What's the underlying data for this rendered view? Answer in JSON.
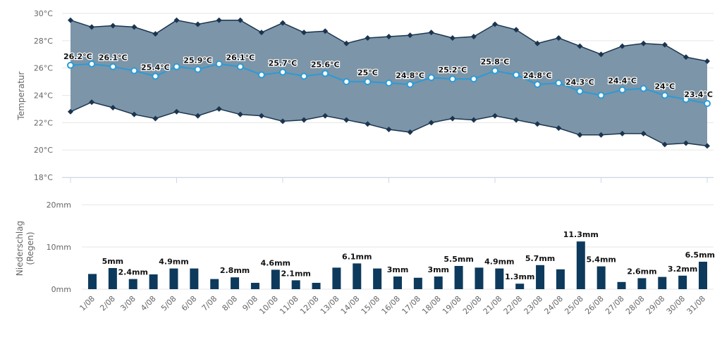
{
  "chart_data": [
    {
      "type": "area",
      "ylabel": "Temperatur",
      "unit": "°C",
      "ylim": [
        18,
        30
      ],
      "yticks": [
        "18°C",
        "20°C",
        "22°C",
        "24°C",
        "26°C",
        "28°C",
        "30°C"
      ],
      "grid": true,
      "categories": [
        "1/08",
        "2/08",
        "3/08",
        "4/08",
        "5/08",
        "6/08",
        "7/08",
        "8/08",
        "9/08",
        "10/08",
        "11/08",
        "12/08",
        "13/08",
        "14/08",
        "15/08",
        "16/08",
        "17/08",
        "18/08",
        "19/08",
        "20/08",
        "21/08",
        "22/08",
        "23/08",
        "24/08",
        "25/08",
        "26/08",
        "27/08",
        "28/08",
        "29/08",
        "30/08",
        "31/08"
      ],
      "series": [
        {
          "role": "max",
          "color": "#1b3550",
          "values": [
            29.5,
            29.0,
            29.1,
            29.0,
            28.5,
            29.5,
            29.2,
            29.5,
            29.5,
            28.6,
            29.3,
            28.6,
            28.7,
            27.8,
            28.2,
            28.3,
            28.4,
            28.6,
            28.2,
            28.3,
            29.2,
            28.8,
            27.8,
            28.2,
            27.6,
            27.0,
            27.6,
            27.8,
            27.7,
            26.8,
            26.5
          ]
        },
        {
          "role": "min",
          "color": "#1b3550",
          "values": [
            22.8,
            23.5,
            23.1,
            22.6,
            22.3,
            22.8,
            22.5,
            23.0,
            22.6,
            22.5,
            22.1,
            22.2,
            22.5,
            22.2,
            21.9,
            21.5,
            21.3,
            22.0,
            22.3,
            22.2,
            22.5,
            22.2,
            21.9,
            21.6,
            21.1,
            21.1,
            21.2,
            21.2,
            20.4,
            20.5,
            20.3
          ]
        },
        {
          "role": "avg",
          "color": "#2b9bd6",
          "values": [
            26.2,
            26.3,
            26.1,
            25.8,
            25.4,
            26.1,
            25.9,
            26.3,
            26.1,
            25.5,
            25.7,
            25.4,
            25.6,
            25.0,
            25.0,
            24.9,
            24.8,
            25.3,
            25.2,
            25.2,
            25.8,
            25.5,
            24.8,
            24.9,
            24.3,
            24.0,
            24.4,
            24.5,
            24.0,
            23.7,
            23.4
          ]
        }
      ],
      "area_fill": "#7c95a8",
      "data_labels": [
        {
          "index": 0,
          "text": "26.2°C"
        },
        {
          "index": 2,
          "text": "26.1°C"
        },
        {
          "index": 4,
          "text": "25.4°C"
        },
        {
          "index": 6,
          "text": "25.9°C"
        },
        {
          "index": 8,
          "text": "26.1°C"
        },
        {
          "index": 10,
          "text": "25.7°C"
        },
        {
          "index": 12,
          "text": "25.6°C"
        },
        {
          "index": 14,
          "text": "25°C"
        },
        {
          "index": 16,
          "text": "24.8°C"
        },
        {
          "index": 18,
          "text": "25.2°C"
        },
        {
          "index": 20,
          "text": "25.8°C"
        },
        {
          "index": 22,
          "text": "24.8°C"
        },
        {
          "index": 24,
          "text": "24.3°C"
        },
        {
          "index": 26,
          "text": "24.4°C"
        },
        {
          "index": 28,
          "text": "24°C"
        },
        {
          "index": 30,
          "text": "23.4°C"
        }
      ]
    },
    {
      "type": "bar",
      "ylabel": "Niederschlag",
      "ylabel2": "(Regen)",
      "unit": "mm",
      "ylim": [
        0,
        20
      ],
      "yticks": [
        "0mm",
        "10mm",
        "20mm"
      ],
      "grid": true,
      "color": "#0d3a5c",
      "categories": [
        "1/08",
        "2/08",
        "3/08",
        "4/08",
        "5/08",
        "6/08",
        "7/08",
        "8/08",
        "9/08",
        "10/08",
        "11/08",
        "12/08",
        "13/08",
        "14/08",
        "15/08",
        "16/08",
        "17/08",
        "18/08",
        "19/08",
        "20/08",
        "21/08",
        "22/08",
        "23/08",
        "24/08",
        "25/08",
        "26/08",
        "27/08",
        "28/08",
        "29/08",
        "30/08",
        "31/08"
      ],
      "values": [
        3.6,
        5.0,
        2.4,
        3.5,
        4.9,
        4.9,
        2.4,
        2.8,
        1.5,
        4.6,
        2.1,
        1.5,
        5.1,
        6.1,
        4.9,
        3.0,
        2.7,
        3.0,
        5.5,
        5.1,
        4.9,
        1.3,
        5.7,
        4.7,
        11.3,
        5.4,
        1.7,
        2.6,
        2.9,
        3.2,
        6.5
      ],
      "data_labels": [
        {
          "index": 1,
          "text": "5mm"
        },
        {
          "index": 2,
          "text": "2.4mm"
        },
        {
          "index": 4,
          "text": "4.9mm"
        },
        {
          "index": 7,
          "text": "2.8mm"
        },
        {
          "index": 9,
          "text": "4.6mm"
        },
        {
          "index": 10,
          "text": "2.1mm"
        },
        {
          "index": 13,
          "text": "6.1mm"
        },
        {
          "index": 15,
          "text": "3mm"
        },
        {
          "index": 17,
          "text": "3mm"
        },
        {
          "index": 18,
          "text": "5.5mm"
        },
        {
          "index": 20,
          "text": "4.9mm"
        },
        {
          "index": 21,
          "text": "1.3mm"
        },
        {
          "index": 22,
          "text": "5.7mm"
        },
        {
          "index": 24,
          "text": "11.3mm"
        },
        {
          "index": 25,
          "text": "5.4mm"
        },
        {
          "index": 27,
          "text": "2.6mm"
        },
        {
          "index": 29,
          "text": "3.2mm"
        },
        {
          "index": 30,
          "text": "6.5mm"
        }
      ]
    }
  ]
}
